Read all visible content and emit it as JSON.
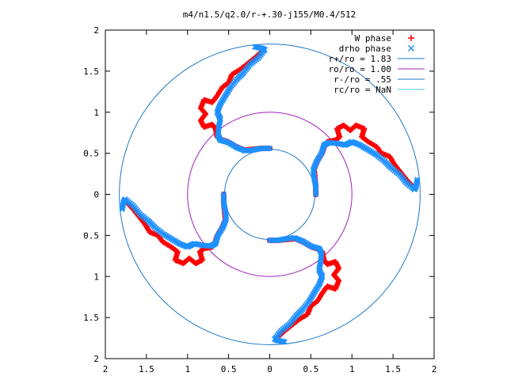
{
  "chart_data": {
    "type": "scatter",
    "title": "m4/n1.5/q2.0/r-+.30-j155/M0.4/512",
    "xlim": [
      -2,
      2
    ],
    "ylim": [
      -2,
      2
    ],
    "x_ticks": [
      -2,
      -1.5,
      -1,
      -0.5,
      0,
      0.5,
      1,
      1.5,
      2
    ],
    "x_tick_labels": [
      "2",
      "1.5",
      "1",
      "0.5",
      "0",
      "0.5",
      "1",
      "1.5",
      "2"
    ],
    "y_ticks": [
      2,
      1.5,
      1,
      0.5,
      0,
      -0.5,
      -1,
      -1.5,
      -2
    ],
    "y_tick_labels": [
      "2",
      "1.5",
      "1",
      "0.5",
      "0",
      "0.5",
      "1",
      "1.5",
      "2"
    ],
    "grid": false,
    "legend_position": "top-right",
    "series": [
      {
        "name": "W phase",
        "marker": "+",
        "color": "#ff0000",
        "arm_points": [
          [
            0.0,
            -0.56
          ],
          [
            0.1,
            -0.56
          ],
          [
            0.2,
            -0.55
          ],
          [
            0.3,
            -0.54
          ],
          [
            0.4,
            -0.58
          ],
          [
            0.5,
            -0.64
          ],
          [
            0.6,
            -0.67
          ],
          [
            0.64,
            -0.7
          ],
          [
            0.66,
            -0.8
          ],
          [
            0.7,
            -0.85
          ],
          [
            0.8,
            -0.82
          ],
          [
            0.84,
            -0.9
          ],
          [
            0.78,
            -0.98
          ],
          [
            0.84,
            -1.05
          ],
          [
            0.8,
            -1.15
          ],
          [
            0.7,
            -1.12
          ],
          [
            0.64,
            -1.2
          ],
          [
            0.58,
            -1.3
          ],
          [
            0.5,
            -1.36
          ],
          [
            0.46,
            -1.46
          ],
          [
            0.36,
            -1.52
          ],
          [
            0.26,
            -1.6
          ],
          [
            0.16,
            -1.68
          ],
          [
            0.08,
            -1.76
          ]
        ]
      },
      {
        "name": "drho phase",
        "marker": "x",
        "color": "#1e90ff",
        "arm_points": [
          [
            0.0,
            -0.56
          ],
          [
            0.1,
            -0.56
          ],
          [
            0.2,
            -0.54
          ],
          [
            0.3,
            -0.53
          ],
          [
            0.4,
            -0.57
          ],
          [
            0.5,
            -0.63
          ],
          [
            0.6,
            -0.66
          ],
          [
            0.63,
            -0.72
          ],
          [
            0.62,
            -0.82
          ],
          [
            0.6,
            -0.92
          ],
          [
            0.64,
            -1.0
          ],
          [
            0.6,
            -1.1
          ],
          [
            0.54,
            -1.2
          ],
          [
            0.48,
            -1.3
          ],
          [
            0.4,
            -1.4
          ],
          [
            0.32,
            -1.48
          ],
          [
            0.24,
            -1.58
          ],
          [
            0.14,
            -1.66
          ],
          [
            0.06,
            -1.76
          ],
          [
            0.1,
            -1.78
          ],
          [
            0.2,
            -1.8
          ]
        ]
      }
    ],
    "symmetry": "4-fold rotation about origin",
    "circles": [
      {
        "name": "r+/ro = 1.83",
        "radius": 1.83,
        "color": "#1e78c8"
      },
      {
        "name": "ro/ro = 1.00",
        "radius": 1.0,
        "color": "#a020c0"
      },
      {
        "name": "r-/ro = .55",
        "radius": 0.55,
        "color": "#1e78c8"
      },
      {
        "name": "rc/ro = NaN",
        "radius": null,
        "color": "#40c8e8"
      }
    ]
  }
}
